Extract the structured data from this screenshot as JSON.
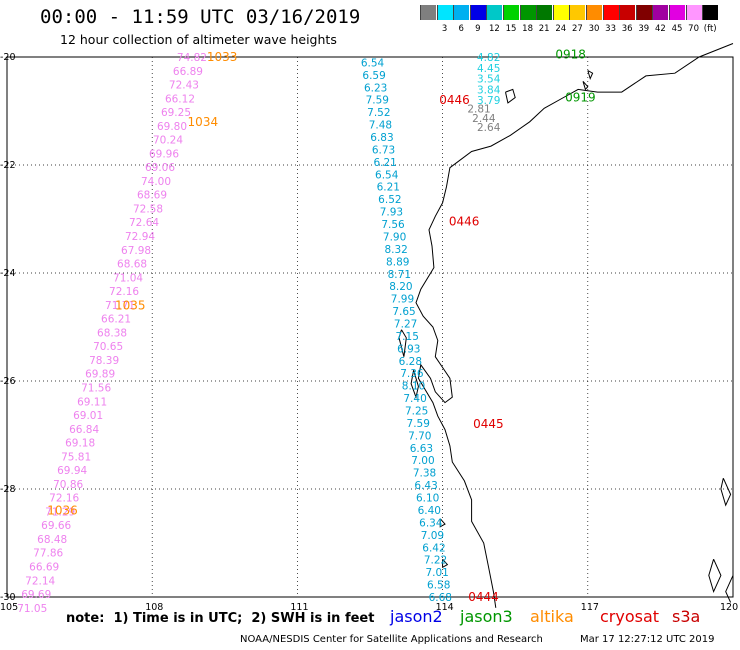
{
  "header": {
    "title": "00:00 - 11:59 UTC 03/16/2019",
    "subtitle": "12 hour collection of altimeter wave heights"
  },
  "legend": {
    "swatches": [
      {
        "color": "#7f7f7f",
        "label": ""
      },
      {
        "color": "#00e5ff",
        "label": "3"
      },
      {
        "color": "#00b0f0",
        "label": "6"
      },
      {
        "color": "#0000e6",
        "label": "9"
      },
      {
        "color": "#00c8c8",
        "label": "12"
      },
      {
        "color": "#00d200",
        "label": "15"
      },
      {
        "color": "#009600",
        "label": "18"
      },
      {
        "color": "#007800",
        "label": "21"
      },
      {
        "color": "#ffff00",
        "label": "24"
      },
      {
        "color": "#ffc800",
        "label": "27"
      },
      {
        "color": "#ff8c00",
        "label": "30"
      },
      {
        "color": "#ff0000",
        "label": "33"
      },
      {
        "color": "#c80000",
        "label": "36"
      },
      {
        "color": "#800000",
        "label": "39"
      },
      {
        "color": "#a000a0",
        "label": "42"
      },
      {
        "color": "#e100e1",
        "label": "45"
      },
      {
        "color": "#ff96ff",
        "label": "70"
      },
      {
        "color": "#000000",
        "label": "(ft)"
      }
    ]
  },
  "axes": {
    "lon_ticks": [
      "105",
      "108",
      "111",
      "114",
      "117",
      "120"
    ],
    "lat_ticks": [
      "-20",
      "-22",
      "-24",
      "-26",
      "-28",
      "-30"
    ]
  },
  "tracks": [
    {
      "name": "altika",
      "color": "#ee82ee",
      "lat_start": -20.0,
      "lat_end": -30.2,
      "lon_start": 108.8,
      "lon_end": 105.5,
      "values": [
        "74.82",
        "66.89",
        "72.43",
        "66.12",
        "69.25",
        "69.80",
        "70.24",
        "69.96",
        "69.06",
        "74.00",
        "68.69",
        "72.58",
        "72.64",
        "72.94",
        "67.98",
        "68.68",
        "71.04",
        "72.16",
        "71.71",
        "66.21",
        "68.38",
        "70.65",
        "78.39",
        "69.89",
        "71.56",
        "69.11",
        "69.01",
        "66.84",
        "69.18",
        "75.81",
        "69.94",
        "70.86",
        "72.16",
        "71.29",
        "69.66",
        "68.48",
        "77.86",
        "66.69",
        "72.14",
        "69.69",
        "71.05"
      ]
    },
    {
      "name": "jason2",
      "color": "#00a0d0",
      "lat_start": -20.1,
      "lat_end": -30.0,
      "lon_start": 112.6,
      "lon_end": 114.0,
      "values": [
        "6.54",
        "6.59",
        "6.23",
        "7.59",
        "7.52",
        "7.48",
        "6.83",
        "6.73",
        "6.21",
        "6.54",
        "6.21",
        "6.52",
        "7.93",
        "7.56",
        "7.90",
        "8.32",
        "8.89",
        "8.71",
        "8.20",
        "7.99",
        "7.65",
        "7.27",
        "7.15",
        "6.93",
        "6.28",
        "7.36",
        "8.10",
        "7.40",
        "7.25",
        "7.59",
        "7.70",
        "6.63",
        "7.00",
        "7.38",
        "6.43",
        "6.10",
        "6.40",
        "6.34",
        "7.09",
        "6.42",
        "7.22",
        "7.01",
        "6.58",
        "6.68"
      ]
    },
    {
      "name": "jason3",
      "color": "#20d0e0",
      "lat_start": -20.0,
      "lat_end": -20.8,
      "lon_start": 115.0,
      "lon_end": 115.0,
      "values": [
        "4.82",
        "4.45",
        "3.54",
        "3.84",
        "3.79"
      ]
    },
    {
      "name": "gray",
      "color": "#7f7f7f",
      "lat_start": -20.95,
      "lat_end": -21.3,
      "lon_start": 114.8,
      "lon_end": 115.0,
      "values": [
        "2.81",
        "2.44",
        "2.64"
      ]
    }
  ],
  "cycle_labels": [
    {
      "text": "1033",
      "lat": -20.0,
      "lon": 108.8,
      "color": "#ff8c00"
    },
    {
      "text": "1034",
      "lat": -21.2,
      "lon": 108.4,
      "color": "#ff8c00"
    },
    {
      "text": "1035",
      "lat": -24.6,
      "lon": 106.9,
      "color": "#ff8c00"
    },
    {
      "text": "1036",
      "lat": -28.4,
      "lon": 105.5,
      "color": "#ff8c00"
    },
    {
      "text": "0918",
      "lat": -19.95,
      "lon": 116.0,
      "color": "#009600"
    },
    {
      "text": "0919",
      "lat": -20.75,
      "lon": 116.2,
      "color": "#009600"
    },
    {
      "text": "0446",
      "lat": -20.8,
      "lon": 113.6,
      "color": "#e00000"
    },
    {
      "text": "0446",
      "lat": -23.05,
      "lon": 113.8,
      "color": "#e00000"
    },
    {
      "text": "0445",
      "lat": -26.8,
      "lon": 114.3,
      "color": "#e00000"
    },
    {
      "text": "0444",
      "lat": -30.0,
      "lon": 114.2,
      "color": "#e00000"
    }
  ],
  "footer": {
    "note": "note:  1) Time is in UTC;  2) SWH is in feet",
    "satellites": [
      {
        "name": "jason2",
        "color": "#0000e6"
      },
      {
        "name": "jason3",
        "color": "#009600"
      },
      {
        "name": "altika",
        "color": "#ff8c00"
      },
      {
        "name": "cryosat",
        "color": "#e00000"
      },
      {
        "name": "s3a",
        "color": "#c80000"
      }
    ],
    "credit": "NOAA/NESDIS Center for Satellite Applications and Research",
    "timestamp": "Mar 17 12:27:12 UTC 2019"
  }
}
